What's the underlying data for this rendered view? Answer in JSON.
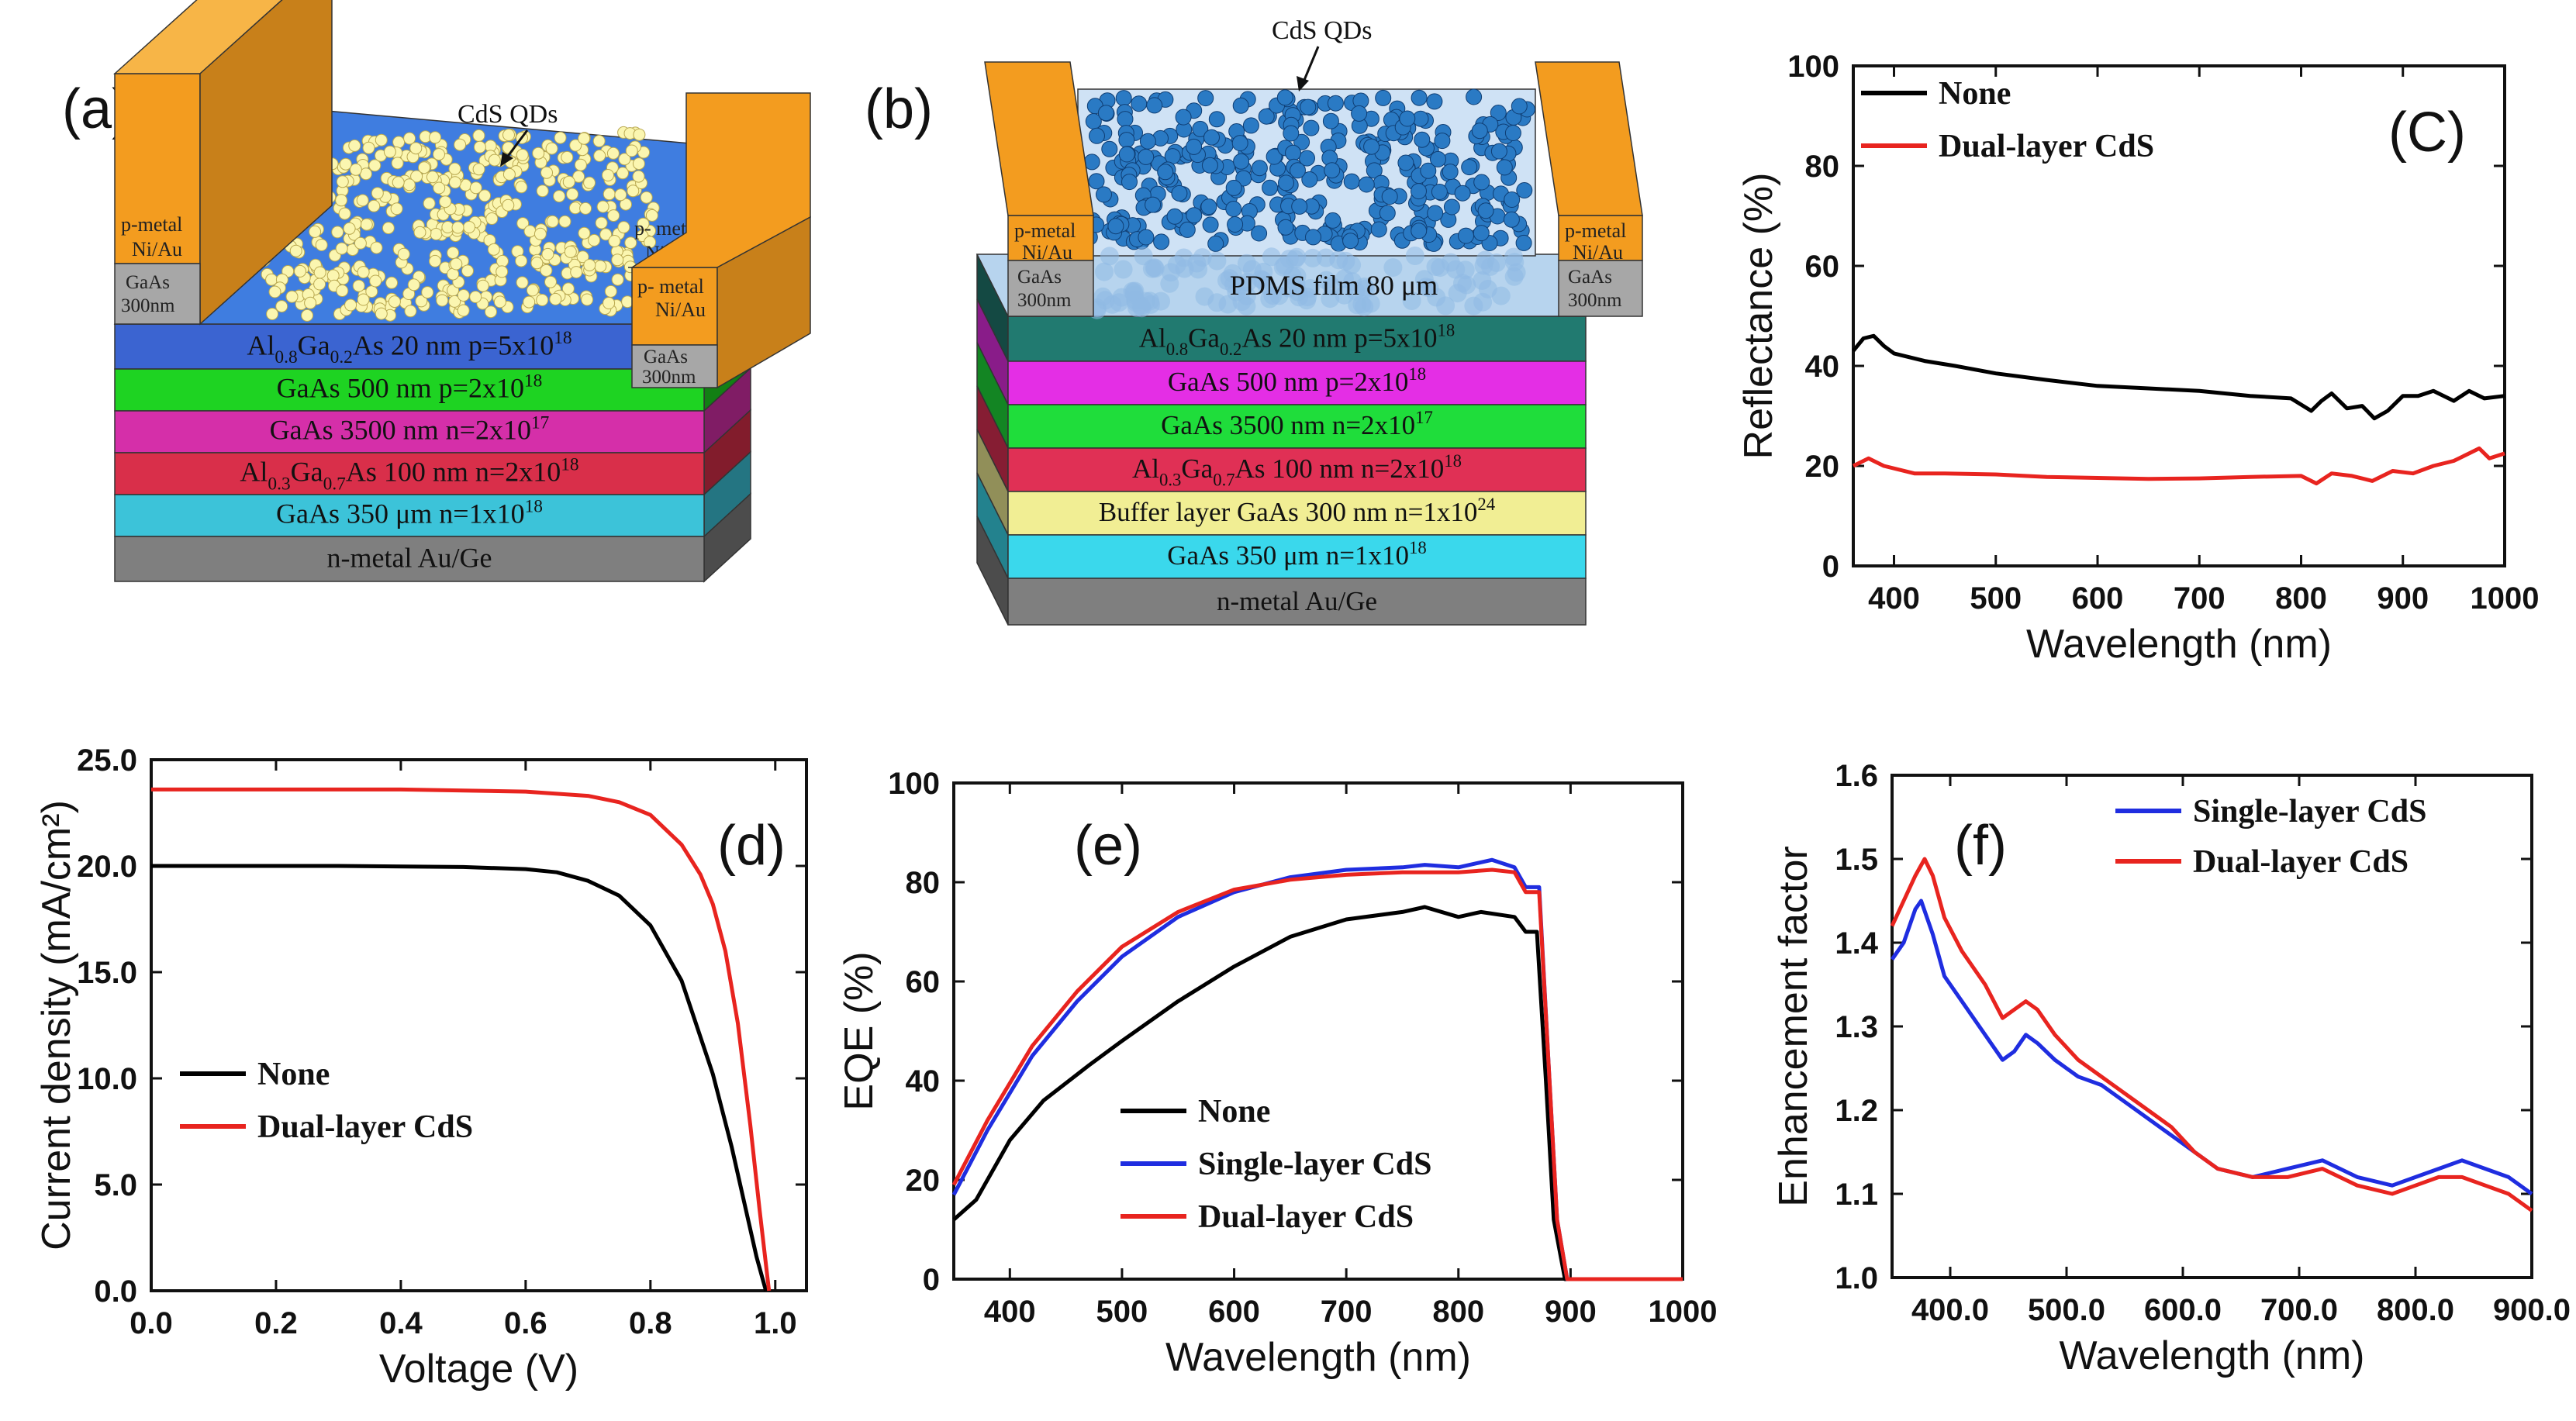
{
  "schematics": {
    "a": {
      "panel_label": "(a)",
      "qd_label": "CdS QDs",
      "contact_left": {
        "metal1": "p-metal",
        "metal2": "Ni/Au",
        "cap1": "GaAs",
        "cap2": "300nm"
      },
      "contact_right": {
        "metal1": "p- metal",
        "metal2": "Ni/Au",
        "cap1": "GaAs",
        "cap2": "300nm"
      },
      "layers": [
        {
          "base": "Al",
          "s1": "0.8",
          "m": "Ga",
          "s2": "0.2",
          "rest": "As 20 nm p=5x10",
          "exp": "18",
          "color": "#3b64d1"
        },
        {
          "base": "GaAs 500 nm p=2x10",
          "exp": "18",
          "color": "#1ed322"
        },
        {
          "base": "GaAs 3500 nm n=2x10",
          "exp": "17",
          "color": "#d52fa9"
        },
        {
          "base": "Al",
          "s1": "0.3",
          "m": "Ga",
          "s2": "0.7",
          "rest": "As 100 nm n=2x10",
          "exp": "18",
          "color": "#d92f4a"
        },
        {
          "base": "GaAs 350 μm n=1x10",
          "exp": "18",
          "color": "#3cc3d9"
        },
        {
          "base": "n-metal Au/Ge",
          "color": "#7f7f7f"
        }
      ]
    },
    "b": {
      "panel_label": "(b)",
      "qd_label": "CdS QDs",
      "film_label": "PDMS film 80 μm",
      "contact_left": {
        "metal1": "p-metal",
        "metal2": "Ni/Au",
        "cap1": "GaAs",
        "cap2": "300nm"
      },
      "contact_right": {
        "metal1": "p-metal",
        "metal2": "Ni/Au",
        "cap1": "GaAs",
        "cap2": "300nm"
      },
      "layers": [
        {
          "base": "Al",
          "s1": "0.8",
          "m": "Ga",
          "s2": "0.2",
          "rest": "As 20 nm p=5x10",
          "exp": "18",
          "color": "#217a70"
        },
        {
          "base": "GaAs 500 nm p=2x10",
          "exp": "18",
          "color": "#e42ee5"
        },
        {
          "base": "GaAs 3500 nm n=2x10",
          "exp": "17",
          "color": "#1fdd3b"
        },
        {
          "base": "Al",
          "s1": "0.3",
          "m": "Ga",
          "s2": "0.7",
          "rest": "As 100 nm n=2x10",
          "exp": "18",
          "color": "#e03055"
        },
        {
          "base": "Buffer layer GaAs 300 nm n=1x10",
          "exp": "24",
          "color": "#f1ee94"
        },
        {
          "base": "GaAs 350 μm n=1x10",
          "exp": "18",
          "color": "#3ad8ec"
        },
        {
          "base": "n-metal Au/Ge",
          "color": "#7f7f7f"
        }
      ]
    }
  },
  "chart_data": [
    {
      "id": "c",
      "type": "line",
      "panel_label": "(C)",
      "xlabel": "Wavelength (nm)",
      "ylabel": "Reflectance (%)",
      "xlim": [
        360,
        1000
      ],
      "ylim": [
        0,
        100
      ],
      "xticks": [
        400,
        500,
        600,
        700,
        800,
        900,
        1000
      ],
      "yticks": [
        0,
        20,
        40,
        60,
        80,
        100
      ],
      "series": [
        {
          "name": "None",
          "color": "#000000",
          "points": [
            [
              360,
              43
            ],
            [
              370,
              45.5
            ],
            [
              380,
              46
            ],
            [
              390,
              44
            ],
            [
              400,
              42.5
            ],
            [
              430,
              41
            ],
            [
              460,
              40
            ],
            [
              500,
              38.5
            ],
            [
              550,
              37.2
            ],
            [
              600,
              36
            ],
            [
              650,
              35.5
            ],
            [
              700,
              35
            ],
            [
              750,
              34
            ],
            [
              790,
              33.5
            ],
            [
              810,
              31
            ],
            [
              820,
              33
            ],
            [
              830,
              34.5
            ],
            [
              845,
              31.5
            ],
            [
              860,
              32
            ],
            [
              872,
              29.5
            ],
            [
              885,
              31
            ],
            [
              900,
              34
            ],
            [
              915,
              34
            ],
            [
              930,
              35
            ],
            [
              950,
              33
            ],
            [
              965,
              35
            ],
            [
              980,
              33.5
            ],
            [
              1000,
              34
            ]
          ]
        },
        {
          "name": "Dual-layer CdS",
          "color": "#e8241f",
          "points": [
            [
              360,
              20
            ],
            [
              375,
              21.5
            ],
            [
              390,
              20
            ],
            [
              420,
              18.5
            ],
            [
              450,
              18.5
            ],
            [
              500,
              18.3
            ],
            [
              550,
              17.8
            ],
            [
              600,
              17.6
            ],
            [
              650,
              17.4
            ],
            [
              700,
              17.5
            ],
            [
              750,
              17.8
            ],
            [
              800,
              18
            ],
            [
              815,
              16.5
            ],
            [
              830,
              18.5
            ],
            [
              850,
              18
            ],
            [
              870,
              17
            ],
            [
              890,
              19
            ],
            [
              910,
              18.5
            ],
            [
              930,
              20
            ],
            [
              950,
              21
            ],
            [
              965,
              22.5
            ],
            [
              975,
              23.5
            ],
            [
              985,
              21.5
            ],
            [
              1000,
              22.5
            ]
          ]
        }
      ]
    },
    {
      "id": "d",
      "type": "line",
      "panel_label": "(d)",
      "xlabel": "Voltage (V)",
      "ylabel": "Current density (mA/cm²)",
      "xlim": [
        0,
        1.05
      ],
      "ylim": [
        0,
        25
      ],
      "xticks": [
        0.0,
        0.2,
        0.4,
        0.6,
        0.8,
        1.0
      ],
      "yticks": [
        0,
        5,
        10,
        15,
        20,
        25
      ],
      "series": [
        {
          "name": "None",
          "color": "#000000",
          "points": [
            [
              0,
              20
            ],
            [
              0.3,
              20
            ],
            [
              0.5,
              19.95
            ],
            [
              0.6,
              19.85
            ],
            [
              0.65,
              19.7
            ],
            [
              0.7,
              19.3
            ],
            [
              0.75,
              18.6
            ],
            [
              0.8,
              17.2
            ],
            [
              0.85,
              14.6
            ],
            [
              0.9,
              10.2
            ],
            [
              0.93,
              6.8
            ],
            [
              0.95,
              4.2
            ],
            [
              0.97,
              1.6
            ],
            [
              0.985,
              0
            ]
          ]
        },
        {
          "name": "Dual-layer CdS",
          "color": "#e8241f",
          "points": [
            [
              0,
              23.6
            ],
            [
              0.4,
              23.6
            ],
            [
              0.6,
              23.5
            ],
            [
              0.7,
              23.3
            ],
            [
              0.75,
              23
            ],
            [
              0.8,
              22.4
            ],
            [
              0.85,
              21
            ],
            [
              0.88,
              19.6
            ],
            [
              0.9,
              18.2
            ],
            [
              0.92,
              16
            ],
            [
              0.94,
              12.6
            ],
            [
              0.96,
              7.8
            ],
            [
              0.975,
              3.8
            ],
            [
              0.99,
              0
            ]
          ]
        }
      ]
    },
    {
      "id": "e",
      "type": "line",
      "panel_label": "(e)",
      "xlabel": "Wavelength (nm)",
      "ylabel": "EQE (%)",
      "xlim": [
        350,
        1000
      ],
      "ylim": [
        0,
        100
      ],
      "xticks": [
        400,
        500,
        600,
        700,
        800,
        900,
        1000
      ],
      "yticks": [
        0,
        20,
        40,
        60,
        80,
        100
      ],
      "series": [
        {
          "name": "None",
          "color": "#000000",
          "points": [
            [
              350,
              12
            ],
            [
              370,
              16
            ],
            [
              400,
              28
            ],
            [
              430,
              36
            ],
            [
              470,
              43
            ],
            [
              500,
              48
            ],
            [
              550,
              56
            ],
            [
              600,
              63
            ],
            [
              650,
              69
            ],
            [
              700,
              72.5
            ],
            [
              750,
              74
            ],
            [
              770,
              75
            ],
            [
              800,
              73
            ],
            [
              820,
              74
            ],
            [
              850,
              73
            ],
            [
              860,
              70
            ],
            [
              870,
              70
            ],
            [
              878,
              40
            ],
            [
              885,
              12
            ],
            [
              895,
              0
            ],
            [
              1000,
              0
            ]
          ]
        },
        {
          "name": "Single-layer CdS",
          "color": "#1f2de0",
          "points": [
            [
              350,
              17
            ],
            [
              380,
              30
            ],
            [
              420,
              45
            ],
            [
              460,
              56
            ],
            [
              500,
              65
            ],
            [
              550,
              73
            ],
            [
              600,
              78
            ],
            [
              650,
              81
            ],
            [
              700,
              82.5
            ],
            [
              750,
              83
            ],
            [
              770,
              83.5
            ],
            [
              800,
              83
            ],
            [
              830,
              84.5
            ],
            [
              850,
              83
            ],
            [
              860,
              79
            ],
            [
              872,
              79
            ],
            [
              880,
              45
            ],
            [
              888,
              12
            ],
            [
              897,
              0
            ],
            [
              1000,
              0
            ]
          ]
        },
        {
          "name": "Dual-layer CdS",
          "color": "#e8241f",
          "points": [
            [
              350,
              19
            ],
            [
              380,
              32
            ],
            [
              420,
              47
            ],
            [
              460,
              58
            ],
            [
              500,
              67
            ],
            [
              550,
              74
            ],
            [
              600,
              78.5
            ],
            [
              650,
              80.5
            ],
            [
              700,
              81.5
            ],
            [
              750,
              82
            ],
            [
              800,
              82
            ],
            [
              830,
              82.5
            ],
            [
              850,
              82
            ],
            [
              860,
              78
            ],
            [
              872,
              78
            ],
            [
              880,
              45
            ],
            [
              888,
              12
            ],
            [
              897,
              0
            ],
            [
              1000,
              0
            ]
          ]
        }
      ]
    },
    {
      "id": "f",
      "type": "line",
      "panel_label": "(f)",
      "xlabel": "Wavelength (nm)",
      "ylabel": "Enhancement factor",
      "xlim": [
        350,
        900
      ],
      "ylim": [
        1.0,
        1.6
      ],
      "xticks": [
        400,
        500,
        600,
        700,
        800,
        900
      ],
      "yticks": [
        1.0,
        1.1,
        1.2,
        1.3,
        1.4,
        1.5,
        1.6
      ],
      "series": [
        {
          "name": "Single-layer CdS",
          "color": "#1f2de0",
          "points": [
            [
              350,
              1.38
            ],
            [
              360,
              1.4
            ],
            [
              370,
              1.44
            ],
            [
              375,
              1.45
            ],
            [
              385,
              1.41
            ],
            [
              395,
              1.36
            ],
            [
              410,
              1.33
            ],
            [
              430,
              1.29
            ],
            [
              445,
              1.26
            ],
            [
              455,
              1.27
            ],
            [
              465,
              1.29
            ],
            [
              475,
              1.28
            ],
            [
              490,
              1.26
            ],
            [
              510,
              1.24
            ],
            [
              530,
              1.23
            ],
            [
              560,
              1.2
            ],
            [
              590,
              1.17
            ],
            [
              610,
              1.15
            ],
            [
              630,
              1.13
            ],
            [
              660,
              1.12
            ],
            [
              690,
              1.13
            ],
            [
              720,
              1.14
            ],
            [
              750,
              1.12
            ],
            [
              780,
              1.11
            ],
            [
              800,
              1.12
            ],
            [
              820,
              1.13
            ],
            [
              840,
              1.14
            ],
            [
              860,
              1.13
            ],
            [
              880,
              1.12
            ],
            [
              900,
              1.1
            ]
          ]
        },
        {
          "name": "Dual-layer CdS",
          "color": "#e8241f",
          "points": [
            [
              350,
              1.42
            ],
            [
              360,
              1.45
            ],
            [
              370,
              1.48
            ],
            [
              378,
              1.5
            ],
            [
              385,
              1.48
            ],
            [
              395,
              1.43
            ],
            [
              410,
              1.39
            ],
            [
              430,
              1.35
            ],
            [
              445,
              1.31
            ],
            [
              455,
              1.32
            ],
            [
              465,
              1.33
            ],
            [
              475,
              1.32
            ],
            [
              490,
              1.29
            ],
            [
              510,
              1.26
            ],
            [
              530,
              1.24
            ],
            [
              560,
              1.21
            ],
            [
              590,
              1.18
            ],
            [
              610,
              1.15
            ],
            [
              630,
              1.13
            ],
            [
              660,
              1.12
            ],
            [
              690,
              1.12
            ],
            [
              720,
              1.13
            ],
            [
              750,
              1.11
            ],
            [
              780,
              1.1
            ],
            [
              800,
              1.11
            ],
            [
              820,
              1.12
            ],
            [
              840,
              1.12
            ],
            [
              860,
              1.11
            ],
            [
              880,
              1.1
            ],
            [
              900,
              1.08
            ]
          ]
        }
      ]
    }
  ]
}
